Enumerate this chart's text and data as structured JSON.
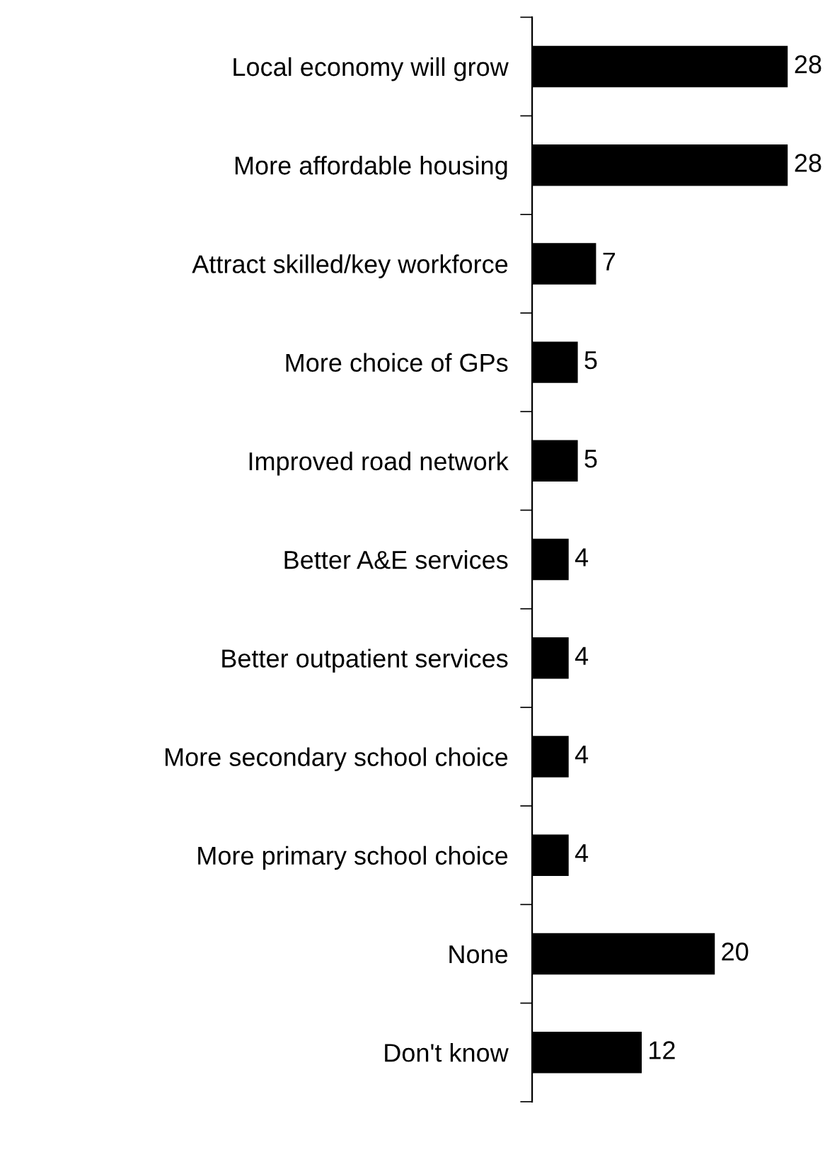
{
  "chart_data": {
    "type": "bar",
    "orientation": "horizontal",
    "categories": [
      "Local economy will grow",
      "More affordable housing",
      "Attract skilled/key workforce",
      "More choice of GPs",
      "Improved road network",
      "Better A&E services",
      "Better outpatient services",
      "More secondary school choice",
      "More primary school choice",
      "None",
      "Don't know"
    ],
    "values": [
      28,
      28,
      7,
      5,
      5,
      4,
      4,
      4,
      4,
      20,
      12
    ],
    "color": "#000000",
    "data_labels": true,
    "grid": false,
    "legend": false
  }
}
